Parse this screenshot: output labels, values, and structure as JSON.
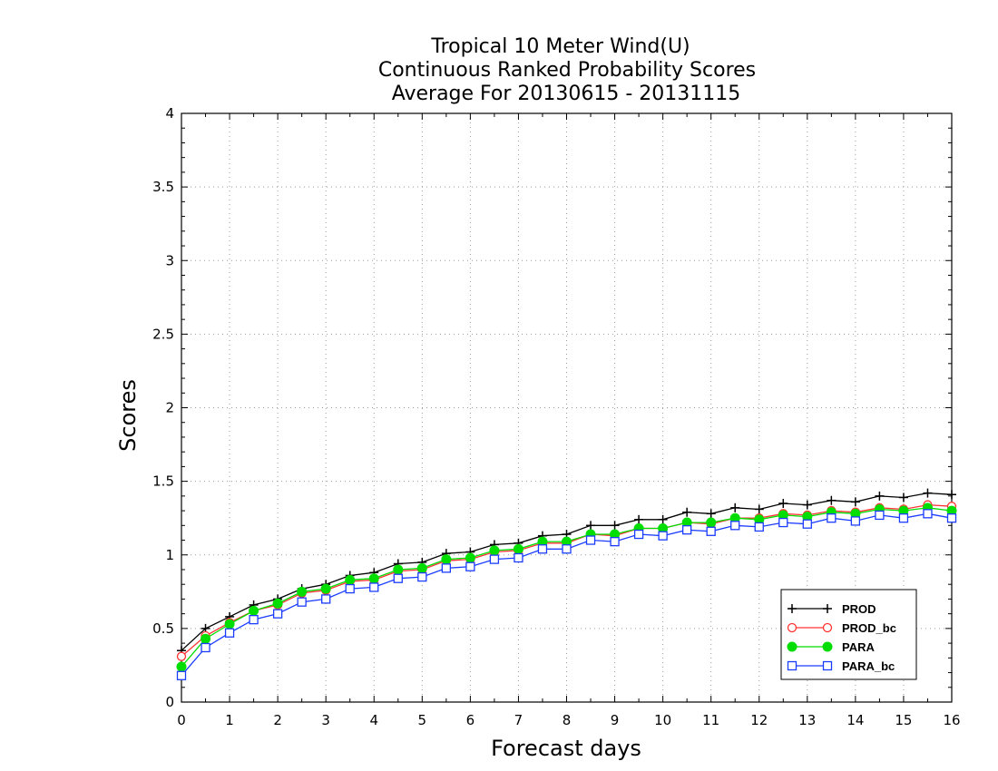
{
  "chart_data": {
    "type": "line",
    "title_lines": [
      "Tropical 10 Meter Wind(U)",
      "Continuous Ranked Probability Scores",
      "Average For 20130615 - 20131115"
    ],
    "xlabel": "Forecast days",
    "ylabel": "Scores",
    "xlim": [
      0,
      16
    ],
    "ylim": [
      0,
      4
    ],
    "x_ticks": [
      0,
      1,
      2,
      3,
      4,
      5,
      6,
      7,
      8,
      9,
      10,
      11,
      12,
      13,
      14,
      15,
      16
    ],
    "y_ticks": [
      0,
      0.5,
      1,
      1.5,
      2,
      2.5,
      3,
      3.5,
      4
    ],
    "x_tick_labels": [
      "0",
      "1",
      "2",
      "3",
      "4",
      "5",
      "6",
      "7",
      "8",
      "9",
      "10",
      "11",
      "12",
      "13",
      "14",
      "15",
      "16"
    ],
    "y_tick_labels": [
      "0",
      "0.5",
      "1",
      "1.5",
      "2",
      "2.5",
      "3",
      "3.5",
      "4"
    ],
    "grid": true,
    "legend_position": "bottom-right",
    "x": [
      0,
      0.5,
      1,
      1.5,
      2,
      2.5,
      3,
      3.5,
      4,
      4.5,
      5,
      5.5,
      6,
      6.5,
      7,
      7.5,
      8,
      8.5,
      9,
      9.5,
      10,
      10.5,
      11,
      11.5,
      12,
      12.5,
      13,
      13.5,
      14,
      14.5,
      15,
      15.5,
      16
    ],
    "series": [
      {
        "name": "PROD",
        "color": "#000000",
        "marker": "plus",
        "values": [
          0.35,
          0.5,
          0.58,
          0.66,
          0.7,
          0.77,
          0.8,
          0.86,
          0.88,
          0.94,
          0.95,
          1.01,
          1.02,
          1.07,
          1.08,
          1.13,
          1.14,
          1.2,
          1.2,
          1.24,
          1.24,
          1.29,
          1.28,
          1.32,
          1.31,
          1.35,
          1.34,
          1.37,
          1.36,
          1.4,
          1.39,
          1.42,
          1.41
        ]
      },
      {
        "name": "PROD_bc",
        "color": "#ff3333",
        "marker": "open-circle",
        "values": [
          0.31,
          0.45,
          0.54,
          0.62,
          0.66,
          0.74,
          0.76,
          0.82,
          0.83,
          0.89,
          0.9,
          0.96,
          0.97,
          1.02,
          1.03,
          1.08,
          1.08,
          1.14,
          1.13,
          1.18,
          1.18,
          1.22,
          1.21,
          1.25,
          1.25,
          1.28,
          1.27,
          1.3,
          1.29,
          1.32,
          1.31,
          1.34,
          1.33
        ]
      },
      {
        "name": "PARA",
        "color": "#00dd00",
        "marker": "filled-circle",
        "values": [
          0.24,
          0.43,
          0.53,
          0.62,
          0.67,
          0.75,
          0.77,
          0.83,
          0.84,
          0.9,
          0.91,
          0.97,
          0.98,
          1.03,
          1.04,
          1.09,
          1.09,
          1.14,
          1.14,
          1.18,
          1.18,
          1.22,
          1.22,
          1.25,
          1.24,
          1.27,
          1.26,
          1.29,
          1.28,
          1.31,
          1.3,
          1.32,
          1.3
        ]
      },
      {
        "name": "PARA_bc",
        "color": "#1a3cff",
        "marker": "open-square",
        "values": [
          0.18,
          0.37,
          0.47,
          0.56,
          0.6,
          0.68,
          0.7,
          0.77,
          0.78,
          0.84,
          0.85,
          0.91,
          0.92,
          0.97,
          0.98,
          1.04,
          1.04,
          1.1,
          1.09,
          1.14,
          1.13,
          1.17,
          1.16,
          1.2,
          1.19,
          1.22,
          1.21,
          1.25,
          1.23,
          1.27,
          1.25,
          1.28,
          1.25
        ]
      }
    ]
  }
}
